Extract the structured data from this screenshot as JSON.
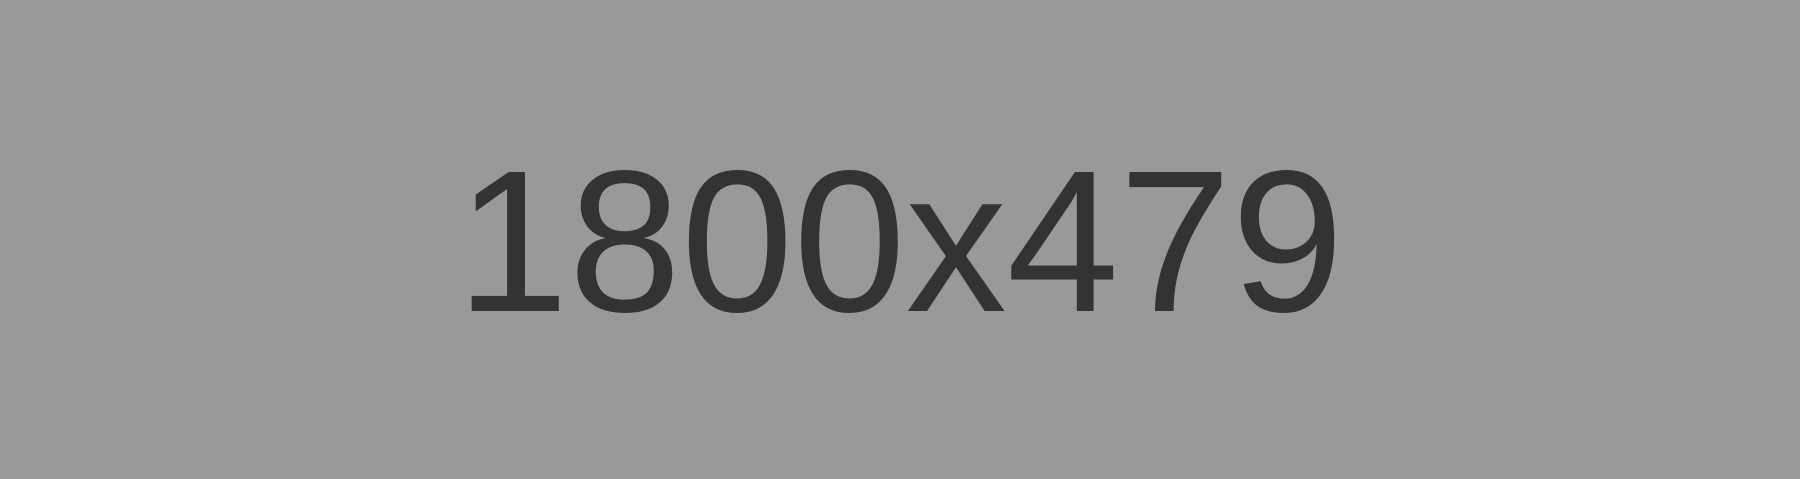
{
  "placeholder": {
    "text": "1800x479",
    "background_color": "#999999",
    "text_color": "#333333"
  }
}
